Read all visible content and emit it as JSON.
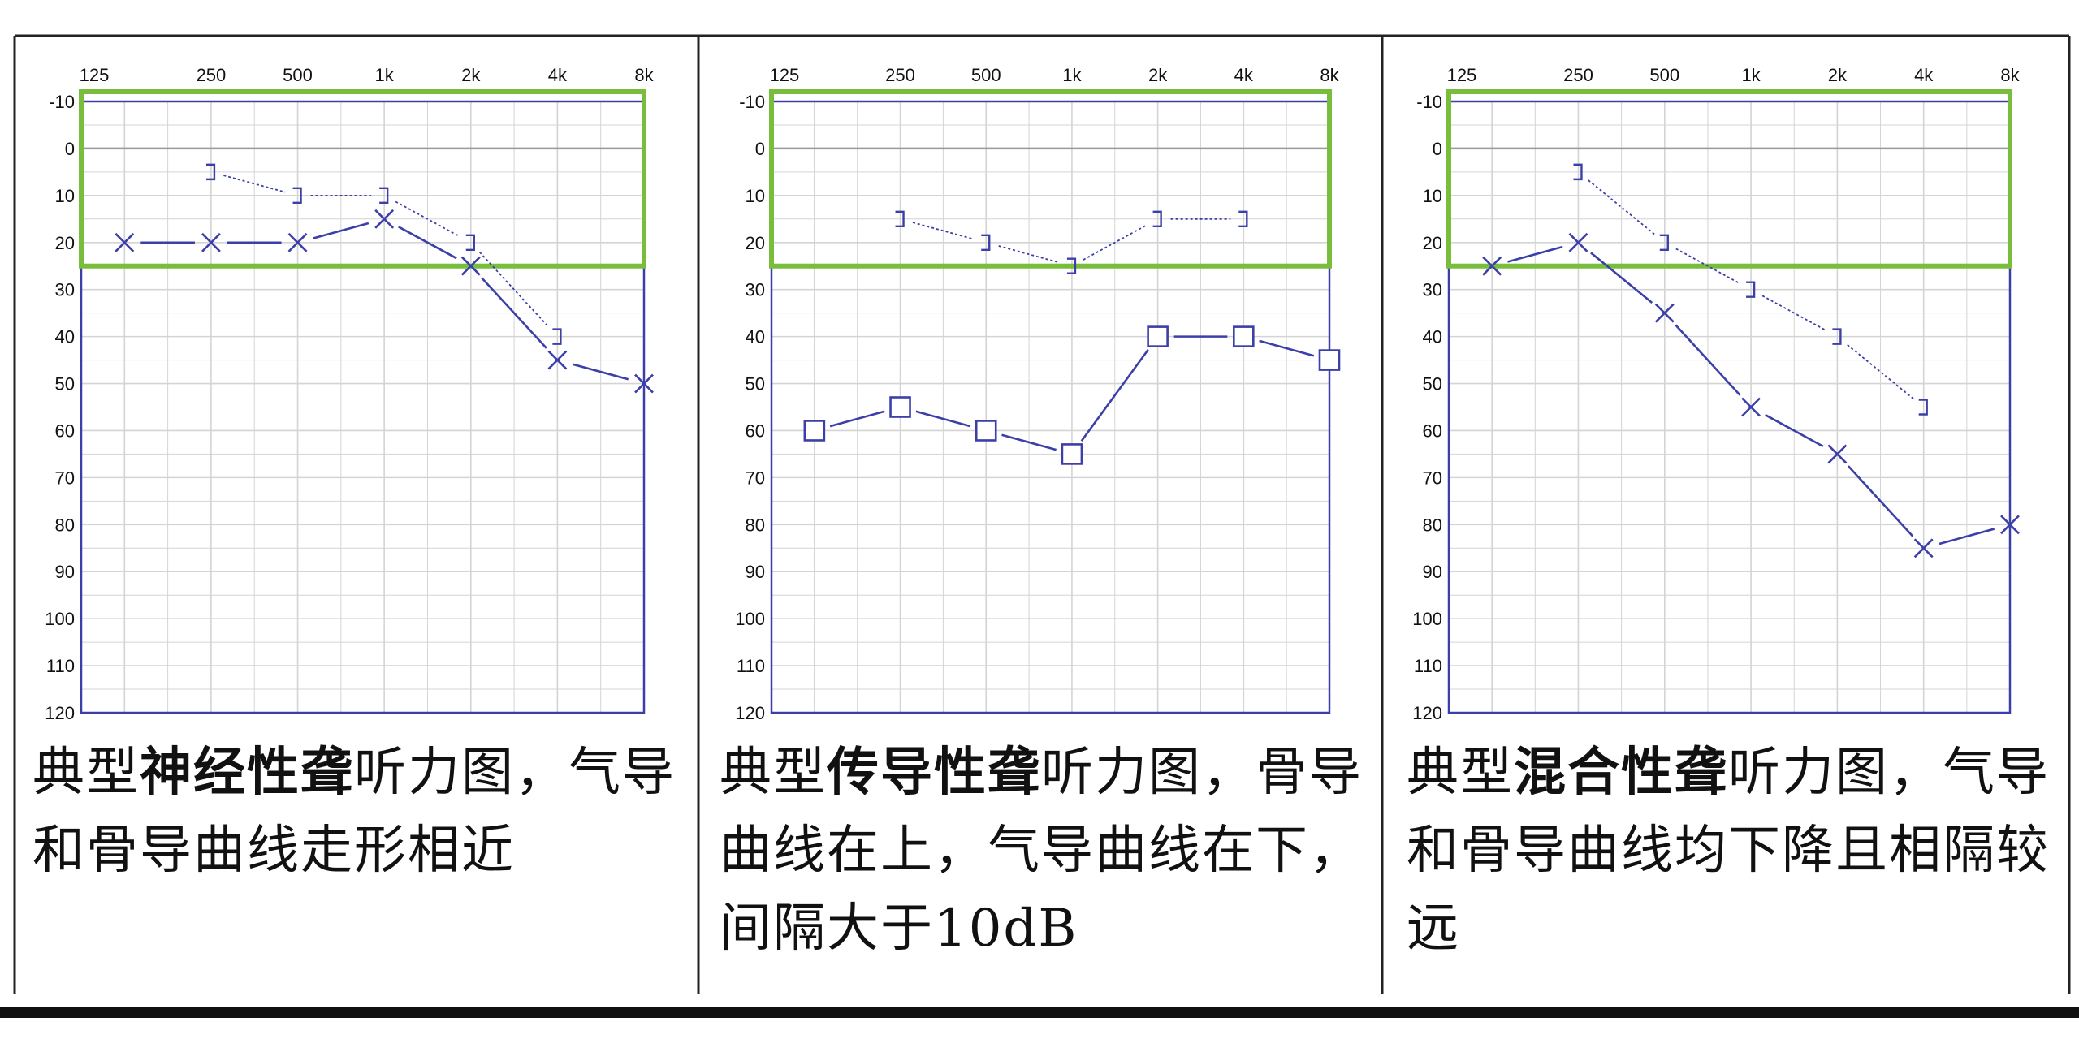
{
  "x_ticks": [
    "125",
    "250",
    "500",
    "1k",
    "2k",
    "4k",
    "8k"
  ],
  "y_ticks": [
    "-10",
    "0",
    "10",
    "20",
    "30",
    "40",
    "50",
    "60",
    "70",
    "80",
    "90",
    "100",
    "110",
    "120"
  ],
  "colors": {
    "series": "#3c3fa8",
    "normal_range": "#78bd3c",
    "grid": "#d4d4d4",
    "zero_line": "#9a9a9a",
    "frame": "#444444"
  },
  "chart_data": [
    {
      "type": "line",
      "x": [
        "125",
        "250",
        "500",
        "1k",
        "2k",
        "4k",
        "8k"
      ],
      "ylim": [
        120,
        -10
      ],
      "normal_range": [
        -10,
        25
      ],
      "series": [
        {
          "marker": "x",
          "values": [
            20,
            20,
            20,
            15,
            25,
            45,
            50
          ]
        },
        {
          "marker": "bracket",
          "values": [
            null,
            5,
            10,
            10,
            20,
            40,
            null
          ]
        }
      ]
    },
    {
      "type": "line",
      "x": [
        "125",
        "250",
        "500",
        "1k",
        "2k",
        "4k",
        "8k"
      ],
      "ylim": [
        120,
        -10
      ],
      "normal_range": [
        -10,
        25
      ],
      "series": [
        {
          "marker": "square",
          "values": [
            60,
            55,
            60,
            65,
            40,
            40,
            45
          ]
        },
        {
          "marker": "bracket",
          "values": [
            null,
            15,
            20,
            25,
            15,
            15,
            null
          ]
        }
      ]
    },
    {
      "type": "line",
      "x": [
        "125",
        "250",
        "500",
        "1k",
        "2k",
        "4k",
        "8k"
      ],
      "ylim": [
        120,
        -10
      ],
      "normal_range": [
        -10,
        25
      ],
      "series": [
        {
          "marker": "x",
          "values": [
            25,
            20,
            35,
            55,
            65,
            85,
            80
          ]
        },
        {
          "marker": "bracket",
          "values": [
            null,
            5,
            20,
            30,
            40,
            55,
            null
          ]
        }
      ]
    }
  ],
  "captions": [
    {
      "pre": "典型",
      "bold": "神经性聋",
      "post": "听力图，气导和骨导曲线走形相近"
    },
    {
      "pre": "典型",
      "bold": "传导性聋",
      "post": "听力图，骨导曲线在上，气导曲线在下，间隔大于10dB"
    },
    {
      "pre": "典型",
      "bold": "混合性聋",
      "post": "听力图，气导和骨导曲线均下降且相隔较远"
    }
  ]
}
